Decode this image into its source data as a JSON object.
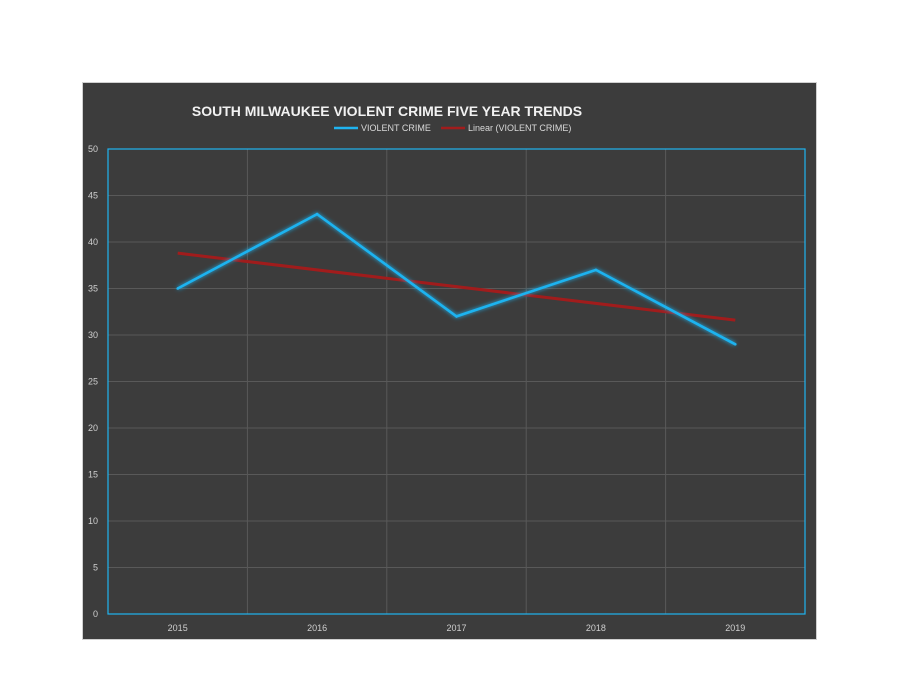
{
  "chart_data": {
    "type": "line",
    "title": "SOUTH MILWAUKEE VIOLENT CRIME FIVE YEAR TRENDS",
    "categories": [
      "2015",
      "2016",
      "2017",
      "2018",
      "2019"
    ],
    "series": [
      {
        "name": "VIOLENT CRIME",
        "values": [
          35,
          43,
          32,
          37,
          29
        ],
        "color": "#1fb3f0"
      }
    ],
    "trendline": {
      "name": "Linear (VIOLENT CRIME)",
      "of_series": "VIOLENT CRIME",
      "kind": "linear",
      "color": "#a11c1c"
    },
    "yticks": [
      "0",
      "5",
      "10",
      "15",
      "20",
      "25",
      "30",
      "35",
      "40",
      "45",
      "50"
    ],
    "ylim": [
      0,
      50
    ],
    "grid": true,
    "legend_position": "top",
    "colors": {
      "background": "#3c3c3c",
      "plot_border": "#1fb3f0",
      "grid": "#595959"
    }
  }
}
